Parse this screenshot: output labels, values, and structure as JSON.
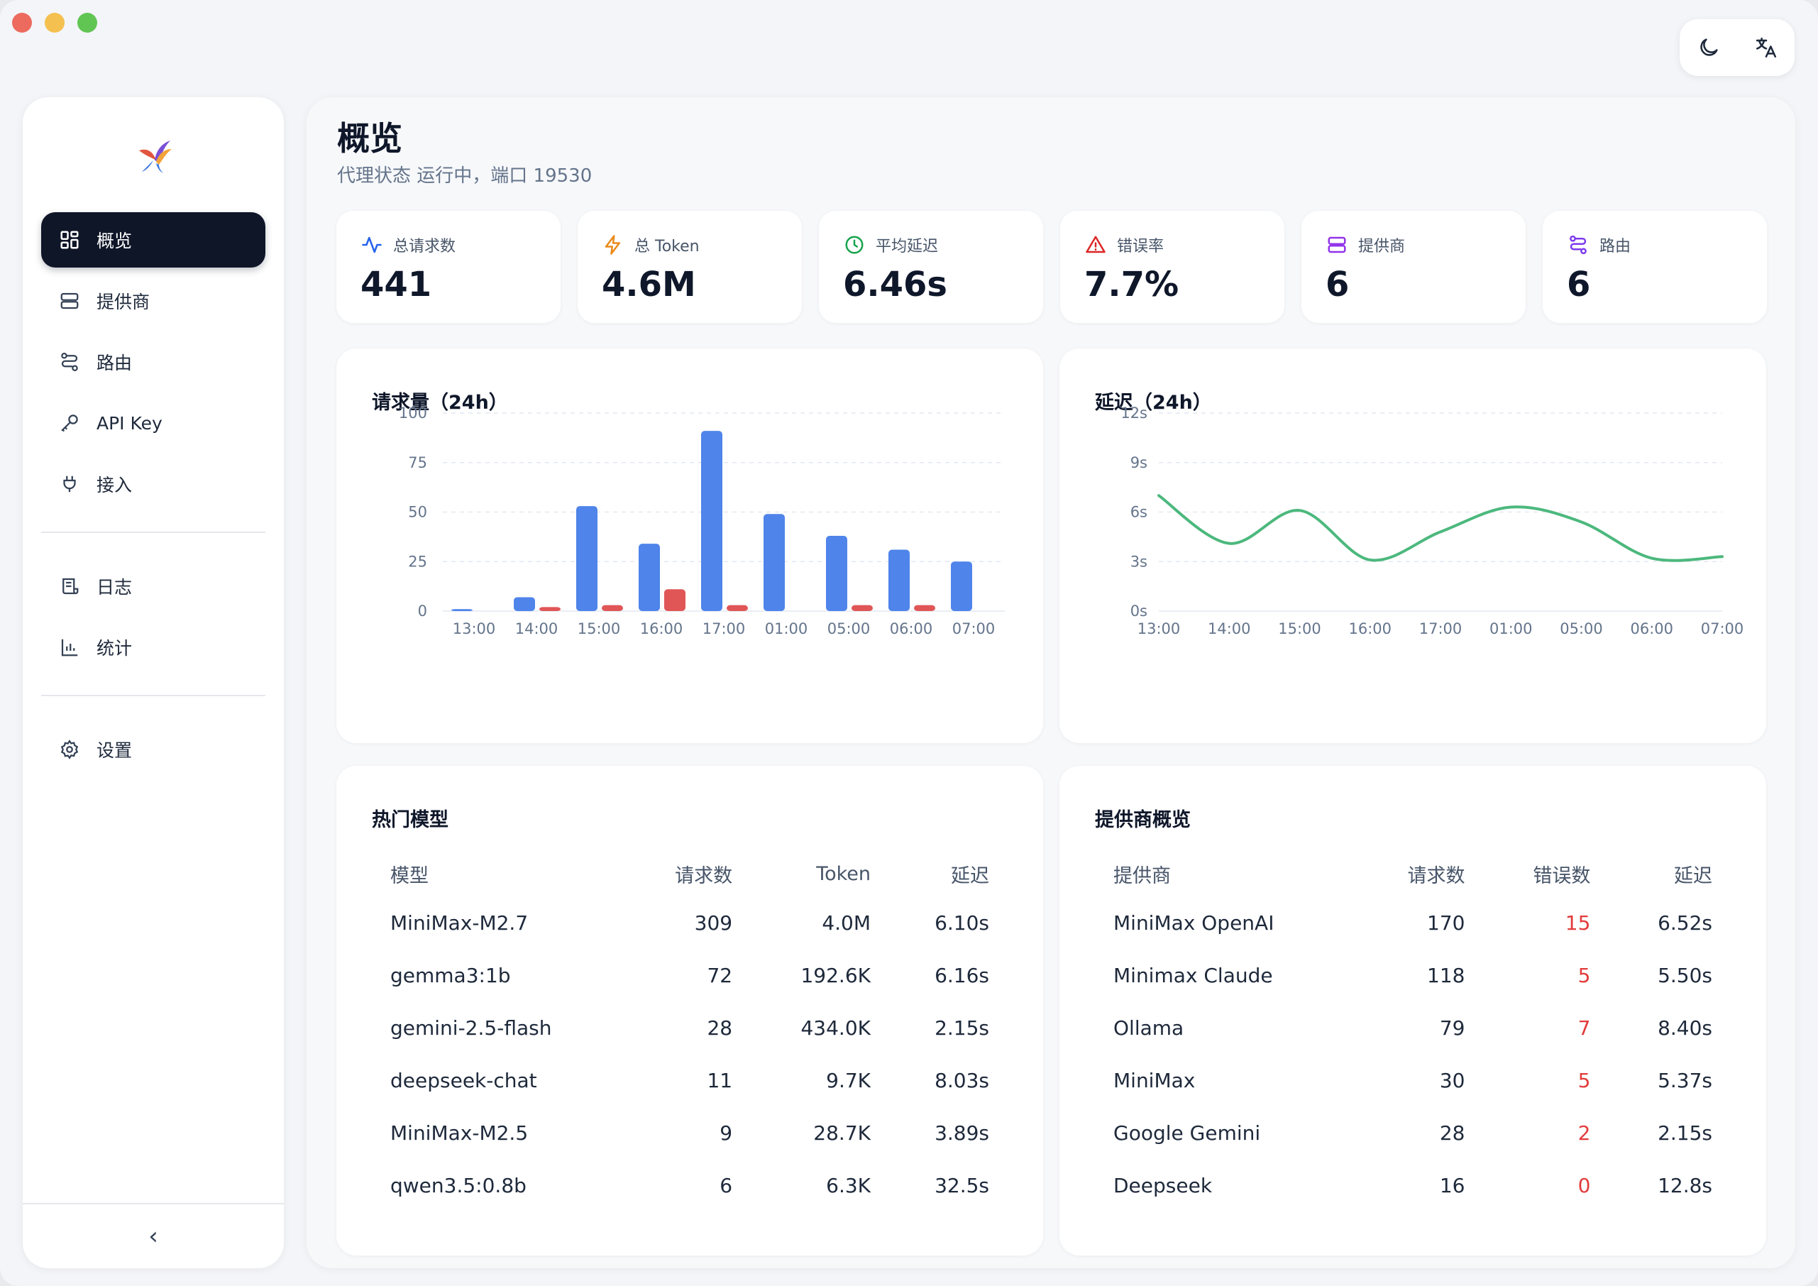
{
  "sidebar": {
    "items": [
      {
        "label": "概览",
        "icon": "dashboard-icon",
        "active": true
      },
      {
        "label": "提供商",
        "icon": "server-icon"
      },
      {
        "label": "路由",
        "icon": "route-icon"
      },
      {
        "label": "API Key",
        "icon": "key-icon"
      },
      {
        "label": "接入",
        "icon": "plug-icon"
      },
      {
        "label": "日志",
        "icon": "log-icon"
      },
      {
        "label": "统计",
        "icon": "bar-chart-icon"
      },
      {
        "label": "设置",
        "icon": "gear-icon"
      }
    ],
    "collapse_glyph": "‹"
  },
  "header": {
    "title": "概览",
    "subtitle": "代理状态 运行中，端口 19530"
  },
  "stats": [
    {
      "label": "总请求数",
      "value": "441",
      "icon": "activity-icon",
      "color": "#2563eb"
    },
    {
      "label": "总 Token",
      "value": "4.6M",
      "icon": "lightning-icon",
      "color": "#ea8a1a"
    },
    {
      "label": "平均延迟",
      "value": "6.46s",
      "icon": "clock-icon",
      "color": "#16a34a"
    },
    {
      "label": "错误率",
      "value": "7.7%",
      "icon": "warning-icon",
      "color": "#dc2626"
    },
    {
      "label": "提供商",
      "value": "6",
      "icon": "server-icon",
      "color": "#9333ea"
    },
    {
      "label": "路由",
      "value": "6",
      "icon": "route-icon",
      "color": "#7c3aed"
    }
  ],
  "colors": {
    "requests": "#4f84ea",
    "errors": "#e05656",
    "latency": "#4cb87d",
    "error_text": "#e23b3b"
  },
  "chart_data": [
    {
      "type": "bar",
      "title": "请求量（24h）",
      "categories": [
        "13:00",
        "14:00",
        "15:00",
        "16:00",
        "17:00",
        "01:00",
        "05:00",
        "06:00",
        "07:00"
      ],
      "series": [
        {
          "values": [
            1,
            7,
            53,
            34,
            91,
            49,
            38,
            31,
            25
          ]
        },
        {
          "values": [
            0,
            2,
            3,
            11,
            3,
            0,
            3,
            3,
            0
          ]
        }
      ],
      "ylim": [
        0,
        100
      ],
      "yticks": [
        "0",
        "25",
        "50",
        "75",
        "100"
      ],
      "grid": true
    },
    {
      "type": "line",
      "title": "延迟（24h）",
      "categories": [
        "13:00",
        "14:00",
        "15:00",
        "16:00",
        "17:00",
        "01:00",
        "05:00",
        "06:00",
        "07:00"
      ],
      "series": [
        {
          "values": [
            7.0,
            4.1,
            6.1,
            3.1,
            4.8,
            6.3,
            5.4,
            3.2,
            3.3
          ]
        }
      ],
      "ylim": [
        0,
        12
      ],
      "yticks": [
        "0s",
        "3s",
        "6s",
        "9s",
        "12s"
      ],
      "grid": true
    }
  ],
  "models": {
    "title": "热门模型",
    "columns": [
      "模型",
      "请求数",
      "Token",
      "延迟"
    ],
    "rows": [
      [
        "MiniMax-M2.7",
        "309",
        "4.0M",
        "6.10s"
      ],
      [
        "gemma3:1b",
        "72",
        "192.6K",
        "6.16s"
      ],
      [
        "gemini-2.5-flash",
        "28",
        "434.0K",
        "2.15s"
      ],
      [
        "deepseek-chat",
        "11",
        "9.7K",
        "8.03s"
      ],
      [
        "MiniMax-M2.5",
        "9",
        "28.7K",
        "3.89s"
      ],
      [
        "qwen3.5:0.8b",
        "6",
        "6.3K",
        "32.5s"
      ]
    ]
  },
  "providers": {
    "title": "提供商概览",
    "columns": [
      "提供商",
      "请求数",
      "错误数",
      "延迟"
    ],
    "rows": [
      [
        "MiniMax OpenAI",
        "170",
        "15",
        "6.52s"
      ],
      [
        "Minimax Claude",
        "118",
        "5",
        "5.50s"
      ],
      [
        "Ollama",
        "79",
        "7",
        "8.40s"
      ],
      [
        "MiniMax",
        "30",
        "5",
        "5.37s"
      ],
      [
        "Google Gemini",
        "28",
        "2",
        "2.15s"
      ],
      [
        "Deepseek",
        "16",
        "0",
        "12.8s"
      ]
    ]
  }
}
